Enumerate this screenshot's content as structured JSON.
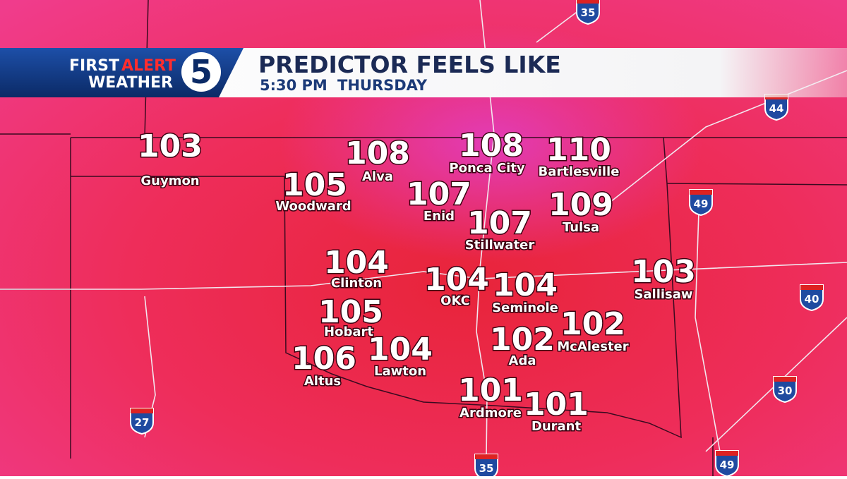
{
  "header": {
    "logo": {
      "first": "FIRST",
      "alert": "ALERT",
      "weather": "WEATHER",
      "channel": "5"
    },
    "title": "PREDICTOR FEELS LIKE",
    "time": "5:30 PM",
    "day": "THURSDAY"
  },
  "cities": [
    {
      "name": "Guymon",
      "value": 103
    },
    {
      "name": "Alva",
      "value": 108
    },
    {
      "name": "Woodward",
      "value": 105
    },
    {
      "name": "Enid",
      "value": 107
    },
    {
      "name": "Ponca City",
      "value": 108
    },
    {
      "name": "Bartlesville",
      "value": 110
    },
    {
      "name": "Tulsa",
      "value": 109
    },
    {
      "name": "Stillwater",
      "value": 107
    },
    {
      "name": "Clinton",
      "value": 104
    },
    {
      "name": "OKC",
      "value": 104
    },
    {
      "name": "Seminole",
      "value": 104
    },
    {
      "name": "Sallisaw",
      "value": 103
    },
    {
      "name": "Hobart",
      "value": 105
    },
    {
      "name": "McAlester",
      "value": 102
    },
    {
      "name": "Ada",
      "value": 102
    },
    {
      "name": "Altus",
      "value": 106
    },
    {
      "name": "Lawton",
      "value": 104
    },
    {
      "name": "Ardmore",
      "value": 101
    },
    {
      "name": "Durant",
      "value": 101
    }
  ],
  "interstates": [
    "35",
    "44",
    "49",
    "40",
    "30",
    "27",
    "35",
    "49"
  ]
}
